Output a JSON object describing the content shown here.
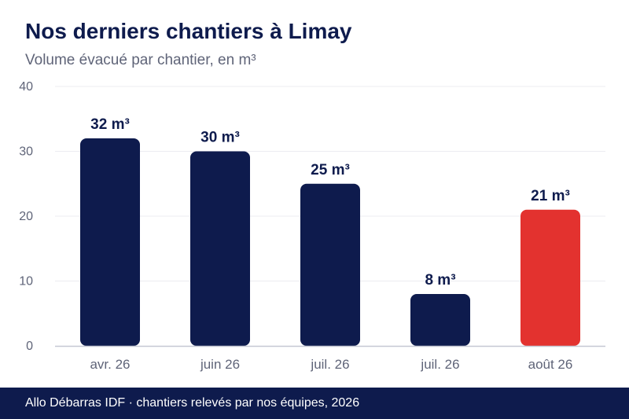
{
  "header": {
    "title": "Nos derniers chantiers à Limay",
    "subtitle": "Volume évacué par chantier, en m³"
  },
  "footer": {
    "text": "Allo Débarras IDF · chantiers relevés par nos équipes, 2026"
  },
  "colors": {
    "bar_default": "#0e1b4d",
    "bar_highlight": "#e3322f",
    "grid": "#ececf1",
    "axis": "#c5c8d3",
    "tick_text": "#5f6478",
    "label_text": "#0e1b4d"
  },
  "chart_data": {
    "type": "bar",
    "title": "Nos derniers chantiers à Limay",
    "subtitle": "Volume évacué par chantier, en m³",
    "categories": [
      "avr. 26",
      "juin 26",
      "juil. 26",
      "juil. 26",
      "août 26"
    ],
    "values": [
      32,
      30,
      25,
      8,
      21
    ],
    "data_labels": [
      "32 m³",
      "30 m³",
      "25 m³",
      "8 m³",
      "21 m³"
    ],
    "highlight_index": 4,
    "ylim": [
      0,
      40
    ],
    "yticks": [
      0,
      10,
      20,
      30,
      40
    ],
    "ytick_labels": [
      "0",
      "10",
      "20",
      "30",
      "40"
    ],
    "grid": true,
    "legend": "none"
  }
}
